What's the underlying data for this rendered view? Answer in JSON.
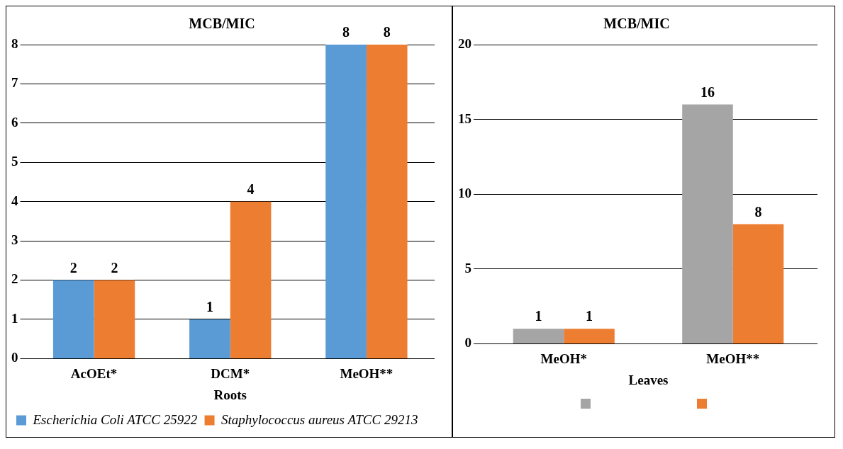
{
  "chart_data": [
    {
      "type": "bar",
      "title": "MCB/MIC",
      "xlabel": "Roots",
      "categories": [
        "AcOEt*",
        "DCM*",
        "MeOH**"
      ],
      "series": [
        {
          "name": "Escherichia Coli ATCC 25922",
          "color": "#5b9bd5",
          "values": [
            2,
            1,
            8
          ]
        },
        {
          "name": "Staphylococcus aureus ATCC 29213",
          "color": "#ed7d31",
          "values": [
            2,
            4,
            8
          ]
        }
      ],
      "ylim": [
        0,
        8
      ],
      "yticks": [
        0,
        1,
        2,
        3,
        4,
        5,
        6,
        7,
        8
      ],
      "grid": "y",
      "legend": "bottom",
      "data_labels": true
    },
    {
      "type": "bar",
      "title": "MCB/MIC",
      "xlabel": "Leaves",
      "categories": [
        "MeOH*",
        "MeOH**"
      ],
      "series": [
        {
          "color": "#a5a5a5",
          "values": [
            1,
            16
          ]
        },
        {
          "color": "#ed7d31",
          "values": [
            1,
            8
          ]
        }
      ],
      "ylim": [
        0,
        20
      ],
      "yticks": [
        0,
        5,
        10,
        15,
        20
      ],
      "grid": "y",
      "legend": "bottom",
      "data_labels": true
    }
  ]
}
